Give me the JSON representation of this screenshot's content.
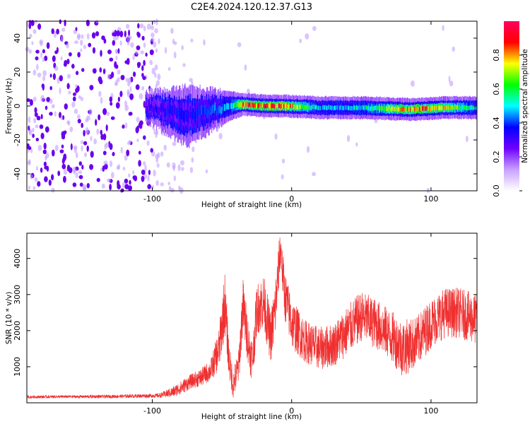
{
  "title": "C2E4.2024.120.12.37.G13",
  "colors": {
    "snr_line": "#f03030",
    "frame": "#000000",
    "background": "#ffffff",
    "speckle": "#6a00ee"
  },
  "chart_data": [
    {
      "type": "heatmap",
      "name": "spectrogram",
      "xlabel": "Height of straight line (km)",
      "ylabel": "Frequency (Hz)",
      "xlim": [
        -190,
        133
      ],
      "ylim": [
        -50,
        50
      ],
      "x_ticks": [
        -100,
        0,
        100
      ],
      "x_tick_labels": [
        "-100",
        "0",
        "100"
      ],
      "y_ticks": [
        -40,
        -20,
        0,
        20,
        40
      ],
      "y_tick_labels": [
        "-40",
        "-20",
        "0",
        "20",
        "40"
      ],
      "colorbar": {
        "label": "Normalized spectral amplitude",
        "range": [
          0,
          1
        ],
        "ticks": [
          0.0,
          0.2,
          0.4,
          0.6,
          0.8
        ],
        "tick_labels": [
          "0.0",
          "0.2",
          "0.4",
          "0.6",
          "0.8"
        ],
        "colormap": [
          "#ffffff",
          "#c8a0ff",
          "#7000ff",
          "#0000ff",
          "#00ffff",
          "#00ff00",
          "#ffff00",
          "#ff0000",
          "#ff0060"
        ]
      },
      "ridge": {
        "description_points": [
          {
            "x": -105,
            "center_hz": 0,
            "width_hz": 4,
            "amplitude": 0.3
          },
          {
            "x": -90,
            "center_hz": -3,
            "width_hz": 6,
            "amplitude": 0.35
          },
          {
            "x": -75,
            "center_hz": -6,
            "width_hz": 8,
            "amplitude": 0.35
          },
          {
            "x": -60,
            "center_hz": -3,
            "width_hz": 6,
            "amplitude": 0.4
          },
          {
            "x": -45,
            "center_hz": 0,
            "width_hz": 4,
            "amplitude": 0.45
          },
          {
            "x": -35,
            "center_hz": 1,
            "width_hz": 3,
            "amplitude": 0.85
          },
          {
            "x": -20,
            "center_hz": 0,
            "width_hz": 3,
            "amplitude": 0.8
          },
          {
            "x": -5,
            "center_hz": 0,
            "width_hz": 3,
            "amplitude": 0.85
          },
          {
            "x": 20,
            "center_hz": -1,
            "width_hz": 3,
            "amplitude": 0.45
          },
          {
            "x": 50,
            "center_hz": -1,
            "width_hz": 3,
            "amplitude": 0.5
          },
          {
            "x": 85,
            "center_hz": -2,
            "width_hz": 3,
            "amplitude": 0.8
          },
          {
            "x": 110,
            "center_hz": -1,
            "width_hz": 3,
            "amplitude": 0.75
          },
          {
            "x": 133,
            "center_hz": -1,
            "width_hz": 3,
            "amplitude": 0.45
          }
        ],
        "noise_region_x": [
          -190,
          -85
        ]
      }
    },
    {
      "type": "line",
      "name": "snr",
      "xlabel": "Height of straight line (km)",
      "ylabel": "SNR (10 * v/v)",
      "xlim": [
        -190,
        133
      ],
      "ylim": [
        0,
        4700
      ],
      "x_ticks": [
        -100,
        0,
        100
      ],
      "x_tick_labels": [
        "-100",
        "0",
        "100"
      ],
      "y_ticks": [
        1000,
        2000,
        3000,
        4000
      ],
      "y_tick_labels": [
        "1000",
        "2000",
        "3000",
        "4000"
      ],
      "series": [
        {
          "x": [
            -190,
            -170,
            -150,
            -130,
            -110,
            -95,
            -85,
            -78,
            -72,
            -65,
            -58,
            -52,
            -48,
            -45,
            -42,
            -38,
            -35,
            -30,
            -28,
            -25,
            -20,
            -15,
            -12,
            -8,
            -5,
            0,
            10,
            20,
            30,
            40,
            50,
            60,
            70,
            80,
            90,
            100,
            110,
            120,
            133
          ],
          "y": [
            160,
            170,
            170,
            175,
            190,
            200,
            300,
            450,
            600,
            700,
            900,
            1500,
            2800,
            1200,
            500,
            1000,
            2700,
            1400,
            1200,
            2600,
            2800,
            1800,
            2500,
            4300,
            3000,
            2200,
            1700,
            1500,
            1600,
            2000,
            2400,
            2200,
            1900,
            1500,
            1700,
            2200,
            2500,
            2500,
            2300
          ],
          "noise_amplitude": [
            40,
            40,
            40,
            45,
            50,
            60,
            150,
            200,
            200,
            250,
            300,
            600,
            900,
            500,
            400,
            500,
            800,
            600,
            600,
            700,
            800,
            700,
            900,
            600,
            700,
            700,
            600,
            600,
            600,
            700,
            700,
            700,
            700,
            800,
            700,
            700,
            700,
            700,
            700
          ]
        }
      ]
    }
  ]
}
